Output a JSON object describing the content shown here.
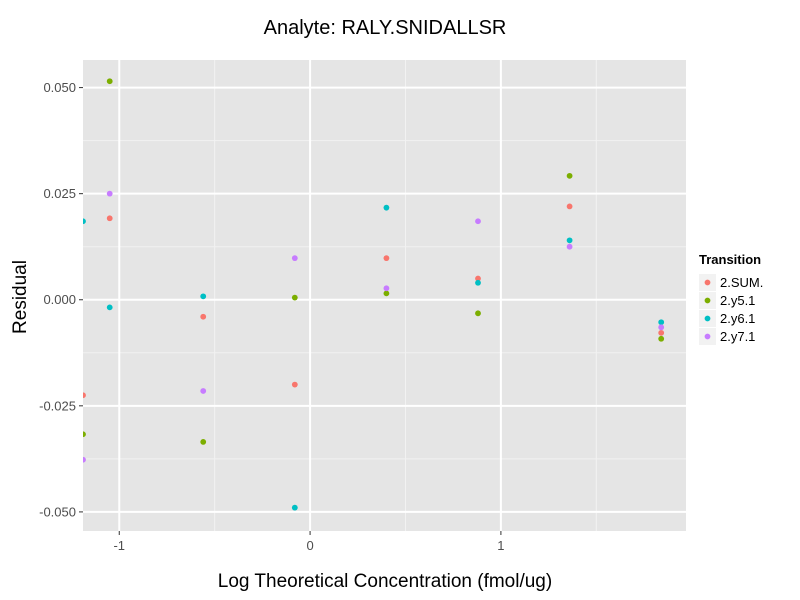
{
  "chart_data": {
    "type": "scatter",
    "title": "Analyte: RALY.SNIDALLSR",
    "xlabel": "Log Theoretical Concentration (fmol/ug)",
    "ylabel": "Residual",
    "xlim": [
      -1.19,
      1.97
    ],
    "ylim": [
      -0.0545,
      0.0565
    ],
    "x_ticks": [
      -1,
      0,
      1
    ],
    "x_tick_labels": [
      "-1",
      "0",
      "1"
    ],
    "y_ticks": [
      -0.05,
      -0.025,
      0.0,
      0.025,
      0.05
    ],
    "y_tick_labels": [
      "-0.050",
      "-0.025",
      "0.000",
      "0.025",
      "0.050"
    ],
    "grid": true,
    "legend": {
      "title": "Transition",
      "placement": "right"
    },
    "series": [
      {
        "name": "2.SUM.",
        "color": "#F8766D",
        "x": [
          -1.19,
          -1.05,
          -0.56,
          -0.08,
          0.4,
          0.88,
          1.36,
          1.84
        ],
        "y": [
          -0.0225,
          0.0192,
          -0.004,
          -0.02,
          0.0098,
          0.005,
          0.022,
          -0.0078
        ]
      },
      {
        "name": "2.y5.1",
        "color": "#7CAE00",
        "x": [
          -1.19,
          -1.05,
          -0.56,
          -0.08,
          0.4,
          0.88,
          1.36,
          1.84
        ],
        "y": [
          -0.0317,
          0.0515,
          -0.0335,
          0.0005,
          0.0015,
          -0.0032,
          0.0292,
          -0.0092
        ]
      },
      {
        "name": "2.y6.1",
        "color": "#00BFC4",
        "x": [
          -1.19,
          -1.05,
          -0.56,
          -0.08,
          0.4,
          0.88,
          1.36,
          1.84
        ],
        "y": [
          0.0185,
          -0.0018,
          0.0008,
          -0.049,
          0.0217,
          0.004,
          0.014,
          -0.0053
        ]
      },
      {
        "name": "2.y7.1",
        "color": "#C77CFF",
        "x": [
          -1.19,
          -1.05,
          -0.56,
          -0.08,
          0.4,
          0.88,
          1.36,
          1.84
        ],
        "y": [
          -0.0377,
          0.025,
          -0.0215,
          0.0098,
          0.0027,
          0.0185,
          0.0125,
          -0.0065
        ]
      }
    ]
  }
}
